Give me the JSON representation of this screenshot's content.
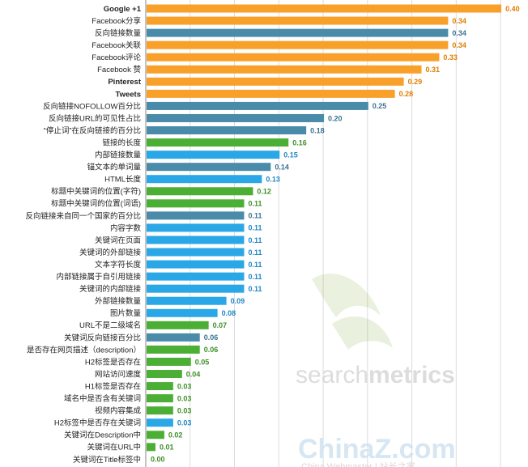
{
  "chart_data": {
    "type": "bar",
    "orientation": "horizontal",
    "title": "",
    "xlabel": "",
    "ylabel": "",
    "xlim": [
      0,
      0.42
    ],
    "grid": true,
    "legend": "none",
    "colors": {
      "orange": "#F9A02B",
      "steel": "#4A8BAA",
      "green": "#4CAF35",
      "sky": "#2AA7E6"
    },
    "categories": [
      "Google +1",
      "Facebook分享",
      "反向链接数量",
      "Facebook关联",
      "Facebook评论",
      "Facebook 赞",
      "Pinterest",
      "Tweets",
      "反向链接NOFOLLOW百分比",
      "反向链接URL的可见性占比",
      "“停止词”在反向链接的百分比",
      "链接的长度",
      "内部链接数量",
      "锚文本的单词量",
      "HTML长度",
      "标题中关键词的位置(字符)",
      "标题中关键词的位置(词语)",
      "反向链接来自同一个国家的百分比",
      "内容字数",
      "关键词在页面",
      "关键词的外部链接",
      "文本字符长度",
      "内部链接属于自引用链接",
      "关键词的内部链接",
      "外部链接数量",
      "图片数量",
      "URL不是二级域名",
      "关键词反向链接百分比",
      "是否存在网页描述（description）",
      "H2标签是否存在",
      "网站访问速度",
      "H1标签是否存在",
      "域名中是否含有关键词",
      "视频内容集成",
      "H2标签中是否存在关键词",
      "关键词在Description中",
      "关键词在URL中",
      "关键词在Title标签中"
    ],
    "values": [
      0.4,
      0.34,
      0.34,
      0.34,
      0.33,
      0.31,
      0.29,
      0.28,
      0.25,
      0.2,
      0.18,
      0.16,
      0.15,
      0.14,
      0.13,
      0.12,
      0.11,
      0.11,
      0.11,
      0.11,
      0.11,
      0.11,
      0.11,
      0.11,
      0.09,
      0.08,
      0.07,
      0.06,
      0.06,
      0.05,
      0.04,
      0.03,
      0.03,
      0.03,
      0.03,
      0.02,
      0.01,
      0.0
    ],
    "value_labels": [
      "0.40",
      "0.34",
      "0.34",
      "0.34",
      "0.33",
      "0.31",
      "0.29",
      "0.28",
      "0.25",
      "0.20",
      "0.18",
      "0.16",
      "0.15",
      "0.14",
      "0.13",
      "0.12",
      "0.11",
      "0.11",
      "0.11",
      "0.11",
      "0.11",
      "0.11",
      "0.11",
      "0.11",
      "0.09",
      "0.08",
      "0.07",
      "0.06",
      "0.06",
      "0.05",
      "0.04",
      "0.03",
      "0.03",
      "0.03",
      "0.03",
      "0.02",
      "0.01",
      "0.00"
    ],
    "bar_colors": [
      "orange",
      "orange",
      "steel",
      "orange",
      "orange",
      "orange",
      "orange",
      "orange",
      "steel",
      "steel",
      "steel",
      "green",
      "sky",
      "steel",
      "sky",
      "green",
      "green",
      "steel",
      "sky",
      "sky",
      "sky",
      "sky",
      "sky",
      "sky",
      "sky",
      "sky",
      "green",
      "steel",
      "green",
      "green",
      "green",
      "green",
      "green",
      "green",
      "sky",
      "green",
      "green",
      "green"
    ],
    "bold_labels": [
      "Google +1",
      "Pinterest",
      "Tweets"
    ]
  },
  "watermarks": {
    "brand_a_part1": "search",
    "brand_a_part2": "metrics",
    "brand_b": "ChinaZ.com",
    "brand_b_sub": "China Webmaster | 站长之家"
  }
}
